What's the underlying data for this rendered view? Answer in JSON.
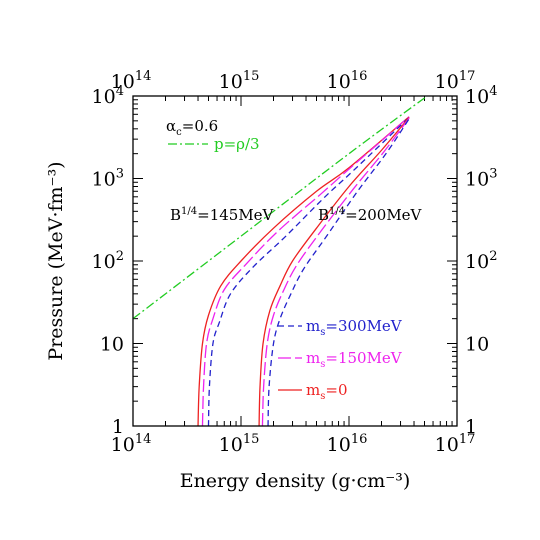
{
  "chart_data": {
    "type": "line",
    "xlabel": "Energy density (g·cm⁻³)",
    "ylabel": "Pressure (MeV·fm⁻³)",
    "xscale": "log",
    "yscale": "log",
    "xlim": [
      100000000000000.0,
      1e+17
    ],
    "ylim": [
      1,
      10000
    ],
    "grid": false,
    "x_ticks": [
      {
        "value": 100000000000000.0,
        "base": "10",
        "exp": "14"
      },
      {
        "value": 1000000000000000.0,
        "base": "10",
        "exp": "15"
      },
      {
        "value": 1e+16,
        "base": "10",
        "exp": "16"
      },
      {
        "value": 1e+17,
        "base": "10",
        "exp": "17"
      }
    ],
    "y_ticks": [
      {
        "value": 1,
        "base": "1",
        "exp": ""
      },
      {
        "value": 10,
        "base": "10",
        "exp": ""
      },
      {
        "value": 100,
        "base": "10",
        "exp": "2"
      },
      {
        "value": 1000,
        "base": "10",
        "exp": "3"
      },
      {
        "value": 10000,
        "base": "10",
        "exp": "4"
      }
    ],
    "annotations": {
      "alpha_base": "α",
      "alpha_sub": "c",
      "alpha_value": "=0.6",
      "b145_base": "B",
      "b145_sup": "1/4",
      "b145_value": "=145MeV",
      "b200_base": "B",
      "b200_sup": "1/4",
      "b200_value": "=200MeV"
    },
    "legend": [
      {
        "label": "p=ρ/3",
        "color": "#22cc22",
        "dash": "9 3 2 3"
      },
      {
        "label_base": "m",
        "label_sub": "s",
        "label_value": "=300MeV",
        "color": "#2222cc",
        "dash": "6 4"
      },
      {
        "label_base": "m",
        "label_sub": "s",
        "label_value": "=150MeV",
        "color": "#ee22ee",
        "dash": "13 4"
      },
      {
        "label_base": "m",
        "label_sub": "s",
        "label_value": "=0",
        "color": "#ee2222",
        "dash": ""
      }
    ],
    "series": [
      {
        "id": "p_rho3",
        "color": "#22cc22",
        "dash": "9 3 2 3",
        "points": [
          [
            100000000000000.0,
            20
          ],
          [
            1000000000000000.0,
            200
          ],
          [
            1e+16,
            2000
          ],
          [
            5.3e+16,
            10000
          ]
        ]
      },
      {
        "id": "b145_ms0",
        "color": "#ee2222",
        "dash": "",
        "points": [
          [
            400000000000000.0,
            1
          ],
          [
            410000000000000.0,
            3
          ],
          [
            440000000000000.0,
            10
          ],
          [
            500000000000000.0,
            22
          ],
          [
            650000000000000.0,
            50
          ],
          [
            1000000000000000.0,
            100
          ],
          [
            2000000000000000.0,
            250
          ],
          [
            5000000000000000.0,
            700
          ],
          [
            1e+16,
            1350
          ],
          [
            3.6e+16,
            5600
          ]
        ]
      },
      {
        "id": "b145_ms150",
        "color": "#ee22ee",
        "dash": "13 4",
        "points": [
          [
            440000000000000.0,
            1
          ],
          [
            450000000000000.0,
            3
          ],
          [
            480000000000000.0,
            10
          ],
          [
            550000000000000.0,
            20
          ],
          [
            700000000000000.0,
            45
          ],
          [
            1100000000000000.0,
            90
          ],
          [
            2200000000000000.0,
            230
          ],
          [
            5500000000000000.0,
            650
          ],
          [
            1e+16,
            1300
          ],
          [
            3.6e+16,
            5600
          ]
        ]
      },
      {
        "id": "b145_ms300",
        "color": "#2222cc",
        "dash": "6 4",
        "points": [
          [
            500000000000000.0,
            1
          ],
          [
            510000000000000.0,
            3
          ],
          [
            550000000000000.0,
            10
          ],
          [
            630000000000000.0,
            18
          ],
          [
            800000000000000.0,
            40
          ],
          [
            1300000000000000.0,
            85
          ],
          [
            2600000000000000.0,
            200
          ],
          [
            6000000000000000.0,
            600
          ],
          [
            1.1e+16,
            1250
          ],
          [
            3.6e+16,
            5500
          ]
        ]
      },
      {
        "id": "b200_ms0",
        "color": "#ee2222",
        "dash": "",
        "points": [
          [
            1470000000000000.0,
            1
          ],
          [
            1500000000000000.0,
            3
          ],
          [
            1600000000000000.0,
            10
          ],
          [
            1850000000000000.0,
            25
          ],
          [
            2300000000000000.0,
            50
          ],
          [
            3000000000000000.0,
            100
          ],
          [
            5000000000000000.0,
            250
          ],
          [
            1e+16,
            800
          ],
          [
            2e+16,
            2200
          ],
          [
            3.6e+16,
            5500
          ]
        ]
      },
      {
        "id": "b200_ms150",
        "color": "#ee22ee",
        "dash": "13 4",
        "points": [
          [
            1580000000000000.0,
            1
          ],
          [
            1620000000000000.0,
            3
          ],
          [
            1750000000000000.0,
            10
          ],
          [
            2000000000000000.0,
            22
          ],
          [
            2500000000000000.0,
            45
          ],
          [
            3300000000000000.0,
            90
          ],
          [
            5500000000000000.0,
            230
          ],
          [
            1.1e+16,
            750
          ],
          [
            2.1e+16,
            2100
          ],
          [
            3.6e+16,
            5400
          ]
        ]
      },
      {
        "id": "b200_ms300",
        "color": "#2222cc",
        "dash": "6 4",
        "points": [
          [
            1780000000000000.0,
            1
          ],
          [
            1820000000000000.0,
            3
          ],
          [
            2000000000000000.0,
            10
          ],
          [
            2300000000000000.0,
            20
          ],
          [
            2900000000000000.0,
            40
          ],
          [
            3800000000000000.0,
            80
          ],
          [
            6200000000000000.0,
            200
          ],
          [
            1.2e+16,
            700
          ],
          [
            2.2e+16,
            2000
          ],
          [
            3.6e+16,
            5300
          ]
        ]
      }
    ]
  }
}
